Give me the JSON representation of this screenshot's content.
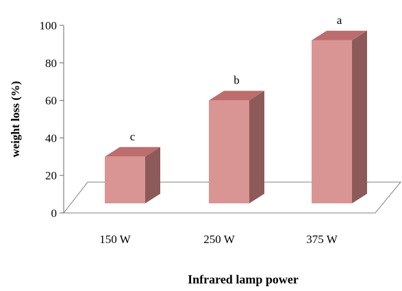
{
  "chart_data": {
    "type": "bar",
    "categories": [
      "150 W",
      "250 W",
      "375 W"
    ],
    "values": [
      30,
      60,
      92
    ],
    "labels": [
      "c",
      "b",
      "a"
    ],
    "ylabel": "weight loss (%)",
    "xlabel": "Infrared lamp power",
    "ylim": [
      0,
      100
    ],
    "yticks": [
      0,
      20,
      40,
      60,
      80,
      100
    ],
    "grid": false,
    "legend": "none",
    "colors": {
      "bar_front": "#d99594",
      "bar_top": "#bb6e6d",
      "bar_side": "#8c5a59",
      "floor": "#ffffff",
      "axis": "#7f7f7f"
    }
  }
}
